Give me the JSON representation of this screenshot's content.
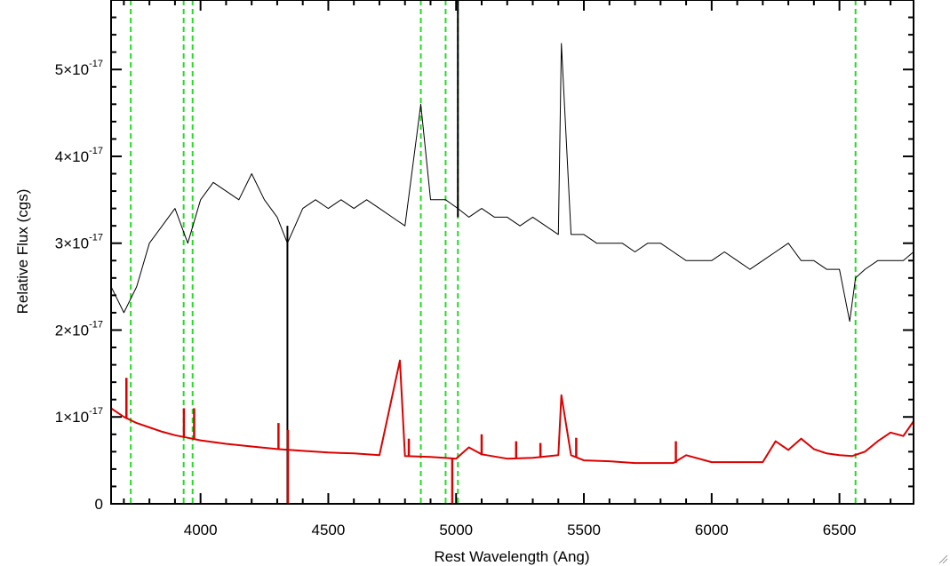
{
  "chart_data": {
    "type": "line",
    "title": "",
    "xlabel": "Rest Wavelength (Ang)",
    "ylabel": "Relative Flux (cgs)",
    "xlim": [
      3650,
      6790
    ],
    "ylim": [
      0,
      5.8e-17
    ],
    "x_ticks": [
      {
        "value": 4000,
        "label": "4000"
      },
      {
        "value": 4500,
        "label": "4500"
      },
      {
        "value": 5000,
        "label": "5000"
      },
      {
        "value": 5500,
        "label": "5500"
      },
      {
        "value": 6000,
        "label": "6000"
      },
      {
        "value": 6500,
        "label": "6500"
      }
    ],
    "y_ticks": [
      {
        "value": 0,
        "mantissa": "0",
        "exponent": ""
      },
      {
        "value": 1e-17,
        "mantissa": "1×10",
        "exponent": "-17"
      },
      {
        "value": 2e-17,
        "mantissa": "2×10",
        "exponent": "-17"
      },
      {
        "value": 3e-17,
        "mantissa": "3×10",
        "exponent": "-17"
      },
      {
        "value": 4e-17,
        "mantissa": "4×10",
        "exponent": "-17"
      },
      {
        "value": 5e-17,
        "mantissa": "5×10",
        "exponent": "-17"
      }
    ],
    "grid": false,
    "series": [
      {
        "role": "flux",
        "color": "#000000",
        "x": [
          3650,
          3700,
          3750,
          3800,
          3850,
          3900,
          3950,
          4000,
          4050,
          4100,
          4150,
          4200,
          4250,
          4300,
          4340,
          4400,
          4450,
          4500,
          4550,
          4600,
          4650,
          4700,
          4750,
          4800,
          4862,
          4900,
          4959,
          5007,
          5050,
          5100,
          5150,
          5200,
          5250,
          5300,
          5350,
          5400,
          5412,
          5450,
          5500,
          5550,
          5600,
          5650,
          5700,
          5750,
          5800,
          5850,
          5900,
          5950,
          6000,
          6050,
          6100,
          6150,
          6200,
          6250,
          6300,
          6350,
          6400,
          6450,
          6500,
          6540,
          6563,
          6600,
          6650,
          6700,
          6750,
          6790
        ],
        "y": [
          2.5e-17,
          2.2e-17,
          2.5e-17,
          3e-17,
          3.2e-17,
          3.4e-17,
          3e-17,
          3.5e-17,
          3.7e-17,
          3.6e-17,
          3.5e-17,
          3.8e-17,
          3.5e-17,
          3.3e-17,
          3e-17,
          3.4e-17,
          3.5e-17,
          3.4e-17,
          3.5e-17,
          3.4e-17,
          3.5e-17,
          3.4e-17,
          3.3e-17,
          3.2e-17,
          4.6e-17,
          3.5e-17,
          3.5e-17,
          3.4e-17,
          3.3e-17,
          3.4e-17,
          3.3e-17,
          3.3e-17,
          3.2e-17,
          3.3e-17,
          3.2e-17,
          3.1e-17,
          5.3e-17,
          3.1e-17,
          3.1e-17,
          3e-17,
          3e-17,
          3e-17,
          2.9e-17,
          3e-17,
          3e-17,
          2.9e-17,
          2.8e-17,
          2.8e-17,
          2.8e-17,
          2.9e-17,
          2.8e-17,
          2.7e-17,
          2.8e-17,
          2.9e-17,
          3e-17,
          2.8e-17,
          2.8e-17,
          2.7e-17,
          2.7e-17,
          2.1e-17,
          2.6e-17,
          2.7e-17,
          2.8e-17,
          2.8e-17,
          2.8e-17,
          2.9e-17
        ]
      },
      {
        "role": "error",
        "color": "#dd0000",
        "x": [
          3650,
          3700,
          3750,
          3800,
          3850,
          3900,
          3950,
          4000,
          4100,
          4200,
          4300,
          4400,
          4500,
          4600,
          4700,
          4780,
          4800,
          4900,
          5000,
          5050,
          5100,
          5200,
          5300,
          5400,
          5412,
          5450,
          5500,
          5600,
          5700,
          5800,
          5850,
          5900,
          6000,
          6100,
          6200,
          6250,
          6300,
          6350,
          6400,
          6450,
          6500,
          6550,
          6600,
          6650,
          6700,
          6750,
          6790
        ],
        "y": [
          1.1e-17,
          1e-17,
          9.3e-18,
          8.8e-18,
          8.3e-18,
          7.9e-18,
          7.6e-18,
          7.3e-18,
          6.9e-18,
          6.6e-18,
          6.3e-18,
          6.1e-18,
          5.9e-18,
          5.8e-18,
          5.6e-18,
          1.65e-17,
          5.5e-18,
          5.4e-18,
          5.2e-18,
          6.5e-18,
          5.7e-18,
          5.2e-18,
          5.3e-18,
          5.6e-18,
          1.25e-17,
          5.6e-18,
          5e-18,
          4.9e-18,
          4.7e-18,
          4.7e-18,
          4.7e-18,
          5.6e-18,
          4.8e-18,
          4.8e-18,
          4.8e-18,
          7.2e-18,
          6.2e-18,
          7.5e-18,
          6.3e-18,
          5.8e-18,
          5.6e-18,
          5.5e-18,
          6e-18,
          7.2e-18,
          8.2e-18,
          7.8e-18,
          9.5e-18
        ]
      }
    ],
    "spikes": [
      {
        "role": "flux",
        "x": 5007,
        "y_low": 3.3e-17,
        "y_high": 5.8e-17
      },
      {
        "role": "flux",
        "x": 4340,
        "y_low": 0,
        "y_high": 3.2e-17
      },
      {
        "role": "error",
        "x": 4342,
        "y_low": 0,
        "y_high": 8.5e-18
      },
      {
        "role": "error",
        "x": 4985,
        "y_low": 0,
        "y_high": 5.2e-18
      },
      {
        "role": "error",
        "x": 3710,
        "y_low": 9.8e-18,
        "y_high": 1.45e-17
      },
      {
        "role": "error",
        "x": 3935,
        "y_low": 7.6e-18,
        "y_high": 1.1e-17
      },
      {
        "role": "error",
        "x": 3975,
        "y_low": 7.4e-18,
        "y_high": 1.1e-17
      },
      {
        "role": "error",
        "x": 4305,
        "y_low": 6.3e-18,
        "y_high": 9.3e-18
      },
      {
        "role": "error",
        "x": 4815,
        "y_low": 5.5e-18,
        "y_high": 7.5e-18
      },
      {
        "role": "error",
        "x": 5100,
        "y_low": 5.6e-18,
        "y_high": 8e-18
      },
      {
        "role": "error",
        "x": 5235,
        "y_low": 5.2e-18,
        "y_high": 7.2e-18
      },
      {
        "role": "error",
        "x": 5330,
        "y_low": 5.3e-18,
        "y_high": 7e-18
      },
      {
        "role": "error",
        "x": 5470,
        "y_low": 5.4e-18,
        "y_high": 7.6e-18
      },
      {
        "role": "error",
        "x": 5860,
        "y_low": 4.7e-18,
        "y_high": 7.2e-18
      }
    ],
    "reference_lines": {
      "color": "#22dd22",
      "style": "dashed",
      "x": [
        3727,
        3934,
        3969,
        4862,
        4959,
        5007,
        6563
      ]
    }
  }
}
